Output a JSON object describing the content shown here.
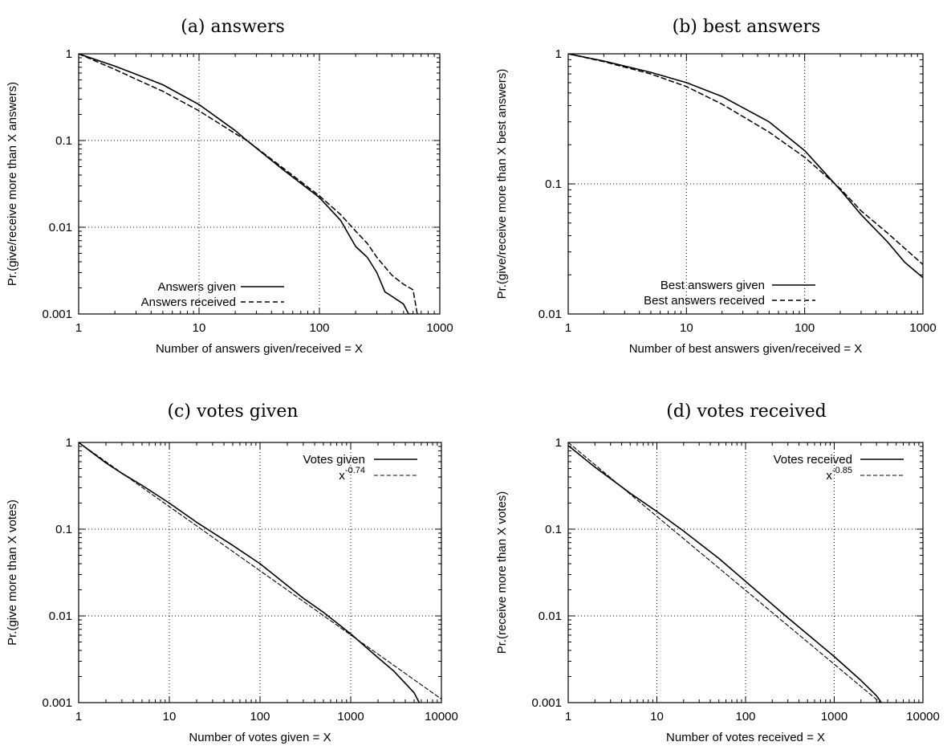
{
  "chart_data": [
    {
      "type": "line",
      "title": "(a) answers",
      "xlabel": "Number of answers given/received = X",
      "ylabel": "Pr.(give/receive more than X answers)",
      "xscale": "log",
      "yscale": "log",
      "xlim": [
        1,
        1000
      ],
      "ylim": [
        0.001,
        1
      ],
      "xticks": [
        1,
        10,
        100,
        1000
      ],
      "xtick_labels": [
        "1",
        "10",
        "100",
        "1000"
      ],
      "yticks": [
        0.001,
        0.01,
        0.1,
        1
      ],
      "ytick_labels": [
        "0.001",
        "0.01",
        "0.1",
        "1"
      ],
      "grid": true,
      "legend_position": "bottom-left",
      "series": [
        {
          "name": "Answers given",
          "style": "solid",
          "x": [
            1,
            2,
            3,
            5,
            10,
            20,
            25,
            50,
            100,
            150,
            200,
            250,
            300,
            350,
            400,
            500,
            550,
            600
          ],
          "y": [
            1,
            0.72,
            0.58,
            0.44,
            0.26,
            0.13,
            0.1,
            0.046,
            0.022,
            0.012,
            0.006,
            0.0045,
            0.003,
            0.0018,
            0.0016,
            0.0013,
            0.001,
            0.001
          ]
        },
        {
          "name": "Answers received",
          "style": "dashed",
          "x": [
            1,
            2,
            3,
            5,
            10,
            20,
            25,
            50,
            100,
            150,
            200,
            250,
            300,
            400,
            500,
            600,
            650
          ],
          "y": [
            1,
            0.66,
            0.51,
            0.37,
            0.22,
            0.12,
            0.1,
            0.048,
            0.023,
            0.014,
            0.009,
            0.0065,
            0.0045,
            0.0028,
            0.0022,
            0.0019,
            0.001
          ]
        }
      ]
    },
    {
      "type": "line",
      "title": "(b) best answers",
      "xlabel": "Number of best answers given/received = X",
      "ylabel": "Pr.(give/receive more than X best answers)",
      "xscale": "log",
      "yscale": "log",
      "xlim": [
        1,
        1000
      ],
      "ylim": [
        0.01,
        1
      ],
      "xticks": [
        1,
        10,
        100,
        1000
      ],
      "xtick_labels": [
        "1",
        "10",
        "100",
        "1000"
      ],
      "yticks": [
        0.01,
        0.1,
        1
      ],
      "ytick_labels": [
        "0.01",
        "0.1",
        "1"
      ],
      "grid": true,
      "legend_position": "bottom-right",
      "series": [
        {
          "name": "Best answers given",
          "style": "solid",
          "x": [
            1,
            2,
            5,
            10,
            20,
            50,
            100,
            200,
            300,
            500,
            700,
            1000
          ],
          "y": [
            1,
            0.88,
            0.72,
            0.6,
            0.47,
            0.3,
            0.18,
            0.09,
            0.058,
            0.036,
            0.025,
            0.019
          ]
        },
        {
          "name": "Best answers received",
          "style": "dashed",
          "x": [
            1,
            2,
            5,
            10,
            20,
            50,
            100,
            200,
            300,
            500,
            700,
            1000
          ],
          "y": [
            1,
            0.87,
            0.7,
            0.56,
            0.41,
            0.25,
            0.16,
            0.092,
            0.062,
            0.042,
            0.032,
            0.024
          ]
        }
      ]
    },
    {
      "type": "line",
      "title": "(c) votes given",
      "xlabel": "Number of votes given = X",
      "ylabel": "Pr.(give more than X votes)",
      "xscale": "log",
      "yscale": "log",
      "xlim": [
        1,
        10000
      ],
      "ylim": [
        0.001,
        1
      ],
      "xticks": [
        1,
        10,
        100,
        1000,
        10000
      ],
      "xtick_labels": [
        "1",
        "10",
        "100",
        "1000",
        "10000"
      ],
      "yticks": [
        0.001,
        0.01,
        0.1,
        1
      ],
      "ytick_labels": [
        "0.001",
        "0.01",
        "0.1",
        "1"
      ],
      "grid": true,
      "legend_position": "top-right",
      "series": [
        {
          "name": "Votes given",
          "style": "solid",
          "x": [
            1,
            2,
            3,
            5,
            10,
            20,
            50,
            100,
            300,
            500,
            1000,
            2000,
            3000,
            5000,
            5700
          ],
          "y": [
            1,
            0.58,
            0.44,
            0.32,
            0.2,
            0.12,
            0.065,
            0.04,
            0.016,
            0.011,
            0.0062,
            0.0033,
            0.0023,
            0.0013,
            0.001
          ]
        },
        {
          "name": "x",
          "superscript": "-0.74",
          "style": "dashed-thin",
          "x": [
            1,
            10000
          ],
          "y": [
            1,
            0.0011
          ]
        }
      ]
    },
    {
      "type": "line",
      "title": "(d) votes received",
      "xlabel": "Number of votes received = X",
      "ylabel": "Pr.(receive more than X votes)",
      "xscale": "log",
      "yscale": "log",
      "xlim": [
        1,
        10000
      ],
      "ylim": [
        0.001,
        1
      ],
      "xticks": [
        1,
        10,
        100,
        1000,
        10000
      ],
      "xtick_labels": [
        "1",
        "10",
        "100",
        "1000",
        "10000"
      ],
      "yticks": [
        0.001,
        0.01,
        0.1,
        1
      ],
      "ytick_labels": [
        "0.001",
        "0.01",
        "0.1",
        "1"
      ],
      "grid": true,
      "legend_position": "top-right",
      "series": [
        {
          "name": "Votes received",
          "style": "solid",
          "x": [
            1,
            2,
            5,
            10,
            20,
            50,
            100,
            300,
            1000,
            2000,
            3000,
            3400
          ],
          "y": [
            0.92,
            0.52,
            0.26,
            0.16,
            0.095,
            0.046,
            0.025,
            0.0095,
            0.0034,
            0.0018,
            0.0012,
            0.001
          ]
        },
        {
          "name": "x",
          "superscript": "-0.85",
          "style": "dashed-thin",
          "x": [
            1,
            4000
          ],
          "y": [
            1,
            0.00085
          ]
        }
      ]
    }
  ]
}
